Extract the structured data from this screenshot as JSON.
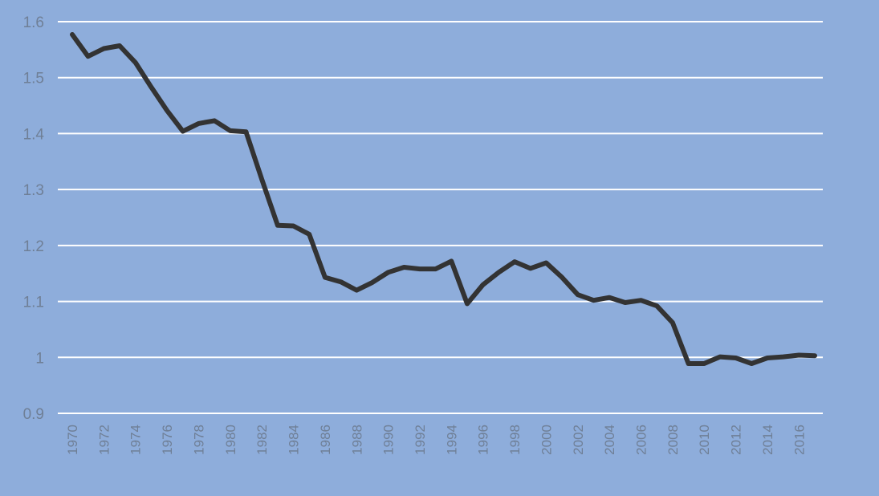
{
  "chart_data": {
    "type": "line",
    "x": [
      1970,
      1971,
      1972,
      1973,
      1974,
      1975,
      1976,
      1977,
      1978,
      1979,
      1980,
      1981,
      1982,
      1983,
      1984,
      1985,
      1986,
      1987,
      1988,
      1989,
      1990,
      1991,
      1992,
      1993,
      1994,
      1995,
      1996,
      1997,
      1998,
      1999,
      2000,
      2001,
      2002,
      2003,
      2004,
      2005,
      2006,
      2007,
      2008,
      2009,
      2010,
      2011,
      2012,
      2013,
      2014,
      2015,
      2016,
      2017
    ],
    "series": [
      {
        "values": [
          1.577,
          1.538,
          1.552,
          1.557,
          1.527,
          1.483,
          1.441,
          1.404,
          1.418,
          1.423,
          1.405,
          1.403,
          1.318,
          1.236,
          1.235,
          1.22,
          1.143,
          1.135,
          1.12,
          1.134,
          1.152,
          1.161,
          1.158,
          1.158,
          1.172,
          1.096,
          1.13,
          1.152,
          1.171,
          1.159,
          1.169,
          1.143,
          1.112,
          1.102,
          1.107,
          1.098,
          1.102,
          1.092,
          1.062,
          0.989,
          0.989,
          1.001,
          0.999,
          0.989,
          0.999,
          1.001,
          1.004,
          1.003
        ],
        "color": "#333333"
      }
    ],
    "xticks": [
      "1970",
      "1972",
      "1974",
      "1976",
      "1978",
      "1980",
      "1982",
      "1984",
      "1986",
      "1988",
      "1990",
      "1992",
      "1994",
      "1996",
      "1998",
      "2000",
      "2002",
      "2004",
      "2006",
      "2008",
      "2010",
      "2012",
      "2014",
      "2016"
    ],
    "yticks": [
      "0.9",
      "1",
      "1.1",
      "1.2",
      "1.3",
      "1.4",
      "1.5",
      "1.6"
    ],
    "ylim": [
      0.9,
      1.6
    ],
    "xlim": [
      1970,
      2017
    ],
    "grid": "horizontal",
    "background": "#8eaddb",
    "gridcolor": "#ffffff",
    "tickcolor": "#6f7f96"
  }
}
